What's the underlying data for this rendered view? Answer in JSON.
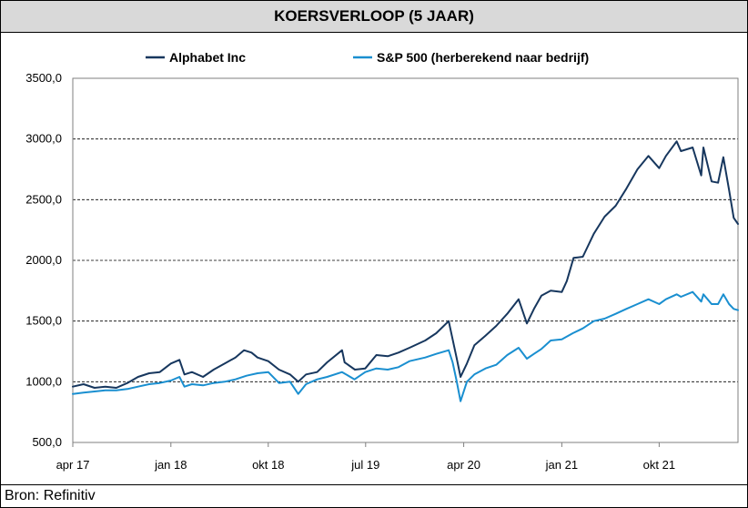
{
  "title": "KOERSVERLOOP (5 JAAR)",
  "source": "Bron: Refinitiv",
  "chart_data": {
    "type": "line",
    "title": "KOERSVERLOOP (5 JAAR)",
    "ylim": [
      500,
      3500
    ],
    "yticks": [
      "500,0",
      "1000,0",
      "1500,0",
      "2000,0",
      "2500,0",
      "3000,0",
      "3500,0"
    ],
    "ytick_values": [
      500,
      1000,
      1500,
      2000,
      2500,
      3000,
      3500
    ],
    "xlim": [
      "2017-04-01",
      "2022-05-10"
    ],
    "xticks": [
      "apr 17",
      "jan 18",
      "okt 18",
      "jul 19",
      "apr 20",
      "jan 21",
      "okt 21"
    ],
    "xtick_dates": [
      "2017-04-01",
      "2018-01-01",
      "2018-10-01",
      "2019-07-01",
      "2020-04-01",
      "2021-01-01",
      "2021-10-01"
    ],
    "grid": "horizontal dashed",
    "legend": "top",
    "series": [
      {
        "name": "Alphabet Inc",
        "color": "#17375e",
        "x": [
          "2017-04-01",
          "2017-05-01",
          "2017-06-01",
          "2017-07-01",
          "2017-08-01",
          "2017-09-01",
          "2017-10-01",
          "2017-11-01",
          "2017-12-01",
          "2018-01-01",
          "2018-01-25",
          "2018-02-08",
          "2018-03-01",
          "2018-04-01",
          "2018-05-01",
          "2018-06-01",
          "2018-07-01",
          "2018-07-25",
          "2018-08-15",
          "2018-09-01",
          "2018-10-01",
          "2018-10-31",
          "2018-12-01",
          "2018-12-24",
          "2019-01-15",
          "2019-02-15",
          "2019-03-15",
          "2019-04-26",
          "2019-05-03",
          "2019-06-01",
          "2019-06-30",
          "2019-07-31",
          "2019-09-01",
          "2019-10-01",
          "2019-11-01",
          "2019-12-15",
          "2020-01-15",
          "2020-02-19",
          "2020-03-01",
          "2020-03-12",
          "2020-03-23",
          "2020-04-10",
          "2020-05-01",
          "2020-06-01",
          "2020-07-01",
          "2020-08-01",
          "2020-09-02",
          "2020-09-25",
          "2020-10-15",
          "2020-11-05",
          "2020-12-01",
          "2021-01-01",
          "2021-01-15",
          "2021-02-03",
          "2021-03-01",
          "2021-04-01",
          "2021-05-01",
          "2021-06-01",
          "2021-07-01",
          "2021-08-01",
          "2021-09-01",
          "2021-10-01",
          "2021-10-20",
          "2021-11-19",
          "2021-12-01",
          "2022-01-03",
          "2022-01-27",
          "2022-02-02",
          "2022-02-25",
          "2022-03-15",
          "2022-03-30",
          "2022-04-15",
          "2022-04-28",
          "2022-05-10"
        ],
        "y": [
          960,
          980,
          950,
          960,
          950,
          990,
          1040,
          1070,
          1080,
          1150,
          1180,
          1060,
          1080,
          1040,
          1100,
          1150,
          1200,
          1260,
          1240,
          1200,
          1170,
          1100,
          1060,
          1000,
          1060,
          1080,
          1160,
          1260,
          1160,
          1100,
          1110,
          1220,
          1210,
          1240,
          1280,
          1340,
          1400,
          1500,
          1350,
          1200,
          1040,
          1150,
          1300,
          1380,
          1460,
          1560,
          1680,
          1480,
          1600,
          1710,
          1750,
          1740,
          1830,
          2020,
          2030,
          2220,
          2360,
          2450,
          2590,
          2750,
          2860,
          2760,
          2860,
          2980,
          2900,
          2930,
          2700,
          2930,
          2650,
          2640,
          2850,
          2580,
          2350,
          2300
        ]
      },
      {
        "name": "S&P 500 (herberekend naar bedrijf)",
        "color": "#1a8fd0",
        "x": [
          "2017-04-01",
          "2017-05-01",
          "2017-06-01",
          "2017-07-01",
          "2017-08-01",
          "2017-09-01",
          "2017-10-01",
          "2017-11-01",
          "2017-12-01",
          "2018-01-01",
          "2018-01-25",
          "2018-02-08",
          "2018-03-01",
          "2018-04-01",
          "2018-05-01",
          "2018-06-01",
          "2018-07-01",
          "2018-08-01",
          "2018-09-01",
          "2018-10-01",
          "2018-10-31",
          "2018-12-01",
          "2018-12-24",
          "2019-01-15",
          "2019-02-15",
          "2019-03-15",
          "2019-04-26",
          "2019-05-31",
          "2019-06-30",
          "2019-07-31",
          "2019-09-01",
          "2019-10-01",
          "2019-11-01",
          "2019-12-15",
          "2020-01-15",
          "2020-02-19",
          "2020-03-01",
          "2020-03-12",
          "2020-03-23",
          "2020-04-10",
          "2020-05-01",
          "2020-06-01",
          "2020-07-01",
          "2020-08-01",
          "2020-09-02",
          "2020-09-25",
          "2020-10-15",
          "2020-11-05",
          "2020-12-01",
          "2021-01-01",
          "2021-02-01",
          "2021-03-01",
          "2021-04-01",
          "2021-05-01",
          "2021-06-01",
          "2021-07-01",
          "2021-08-01",
          "2021-09-01",
          "2021-10-01",
          "2021-10-20",
          "2021-11-19",
          "2021-12-01",
          "2022-01-03",
          "2022-01-27",
          "2022-02-02",
          "2022-02-25",
          "2022-03-15",
          "2022-03-30",
          "2022-04-15",
          "2022-04-28",
          "2022-05-10"
        ],
        "y": [
          900,
          910,
          920,
          930,
          930,
          940,
          960,
          980,
          990,
          1010,
          1040,
          960,
          980,
          970,
          990,
          1000,
          1020,
          1050,
          1070,
          1080,
          990,
          1000,
          900,
          980,
          1020,
          1040,
          1080,
          1020,
          1080,
          1110,
          1100,
          1120,
          1170,
          1200,
          1230,
          1260,
          1160,
          1010,
          840,
          1000,
          1060,
          1110,
          1140,
          1220,
          1280,
          1190,
          1230,
          1270,
          1340,
          1350,
          1400,
          1440,
          1500,
          1520,
          1560,
          1600,
          1640,
          1680,
          1640,
          1680,
          1720,
          1700,
          1740,
          1660,
          1720,
          1640,
          1640,
          1720,
          1640,
          1600,
          1590
        ]
      }
    ]
  }
}
